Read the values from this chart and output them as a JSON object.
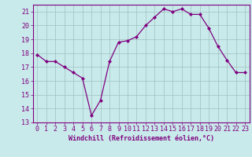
{
  "x": [
    0,
    1,
    2,
    3,
    4,
    5,
    6,
    7,
    8,
    9,
    10,
    11,
    12,
    13,
    14,
    15,
    16,
    17,
    18,
    19,
    20,
    21,
    22,
    23
  ],
  "y": [
    17.9,
    17.4,
    17.4,
    17.0,
    16.6,
    16.2,
    13.5,
    14.6,
    17.4,
    18.8,
    18.9,
    19.2,
    20.0,
    20.6,
    21.2,
    21.0,
    21.2,
    20.8,
    20.8,
    19.8,
    18.5,
    17.5,
    16.6,
    16.6
  ],
  "line_color": "#800080",
  "marker": "D",
  "marker_size": 2.0,
  "background_color": "#c8eaea",
  "grid_color": "#a0c0c0",
  "xlabel": "Windchill (Refroidissement éolien,°C)",
  "xlabel_fontsize": 6.0,
  "tick_fontsize": 6.0,
  "xlim": [
    -0.5,
    23.5
  ],
  "ylim": [
    13,
    21.5
  ],
  "yticks": [
    13,
    14,
    15,
    16,
    17,
    18,
    19,
    20,
    21
  ],
  "xticks": [
    0,
    1,
    2,
    3,
    4,
    5,
    6,
    7,
    8,
    9,
    10,
    11,
    12,
    13,
    14,
    15,
    16,
    17,
    18,
    19,
    20,
    21,
    22,
    23
  ],
  "line_width": 0.9
}
